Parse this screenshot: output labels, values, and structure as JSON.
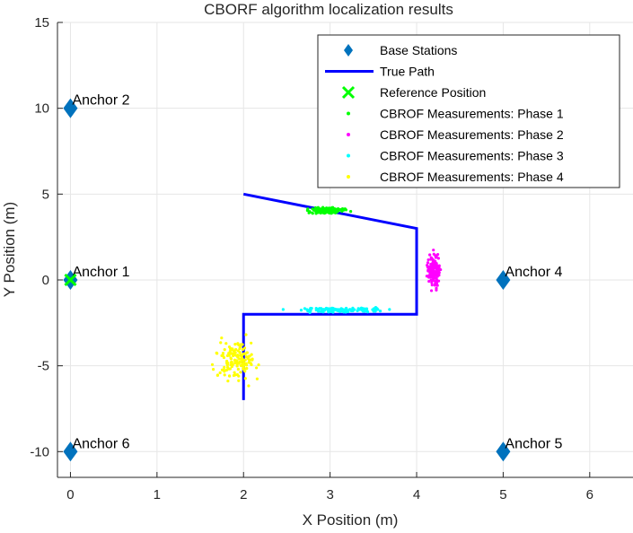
{
  "chart_data": {
    "type": "scatter",
    "title": "CBORF algorithm localization results",
    "xlabel": "X Position (m)",
    "ylabel": "Y Position (m)",
    "xlim": [
      -0.15,
      6.5
    ],
    "ylim": [
      -11.5,
      15
    ],
    "xticks": [
      0,
      1,
      2,
      3,
      4,
      5,
      6
    ],
    "yticks": [
      -10,
      -5,
      0,
      5,
      10,
      15
    ],
    "grid": true,
    "legend_position": "top-right",
    "colors": {
      "base_stations": "#0072BD",
      "true_path": "#0000FF",
      "reference": "#00FF00",
      "phase1": "#00FF00",
      "phase2": "#FF00FF",
      "phase3": "#00FFFF",
      "phase4": "#FFFF00"
    },
    "base_stations": {
      "name": "Base Stations",
      "points": [
        {
          "label": "Anchor 1",
          "x": 0,
          "y": 0
        },
        {
          "label": "Anchor 2",
          "x": 0,
          "y": 10
        },
        {
          "label": "Anchor 4",
          "x": 5,
          "y": 0
        },
        {
          "label": "Anchor 5",
          "x": 5,
          "y": -10
        },
        {
          "label": "Anchor 6",
          "x": 0,
          "y": -10
        }
      ]
    },
    "true_path": {
      "name": "True Path",
      "points": [
        [
          2,
          5
        ],
        [
          4,
          3
        ],
        [
          4,
          -2
        ],
        [
          2,
          -2
        ],
        [
          2,
          -7
        ]
      ]
    },
    "reference": {
      "name": "Reference Position",
      "x": 0,
      "y": 0
    },
    "measurements": [
      {
        "name": "CBROF Measurements: Phase 1",
        "color_key": "phase1",
        "center": [
          2.95,
          4.05
        ],
        "spread": [
          0.35,
          0.3
        ]
      },
      {
        "name": "CBROF Measurements: Phase 2",
        "color_key": "phase2",
        "center": [
          4.2,
          0.5
        ],
        "spread": [
          0.12,
          1.6
        ]
      },
      {
        "name": "CBROF Measurements: Phase 3",
        "color_key": "phase3",
        "center": [
          3.12,
          -1.75
        ],
        "spread": [
          0.8,
          0.2
        ]
      },
      {
        "name": "CBROF Measurements: Phase 4",
        "color_key": "phase4",
        "center": [
          1.92,
          -4.7
        ],
        "spread": [
          0.4,
          2.0
        ]
      }
    ]
  }
}
